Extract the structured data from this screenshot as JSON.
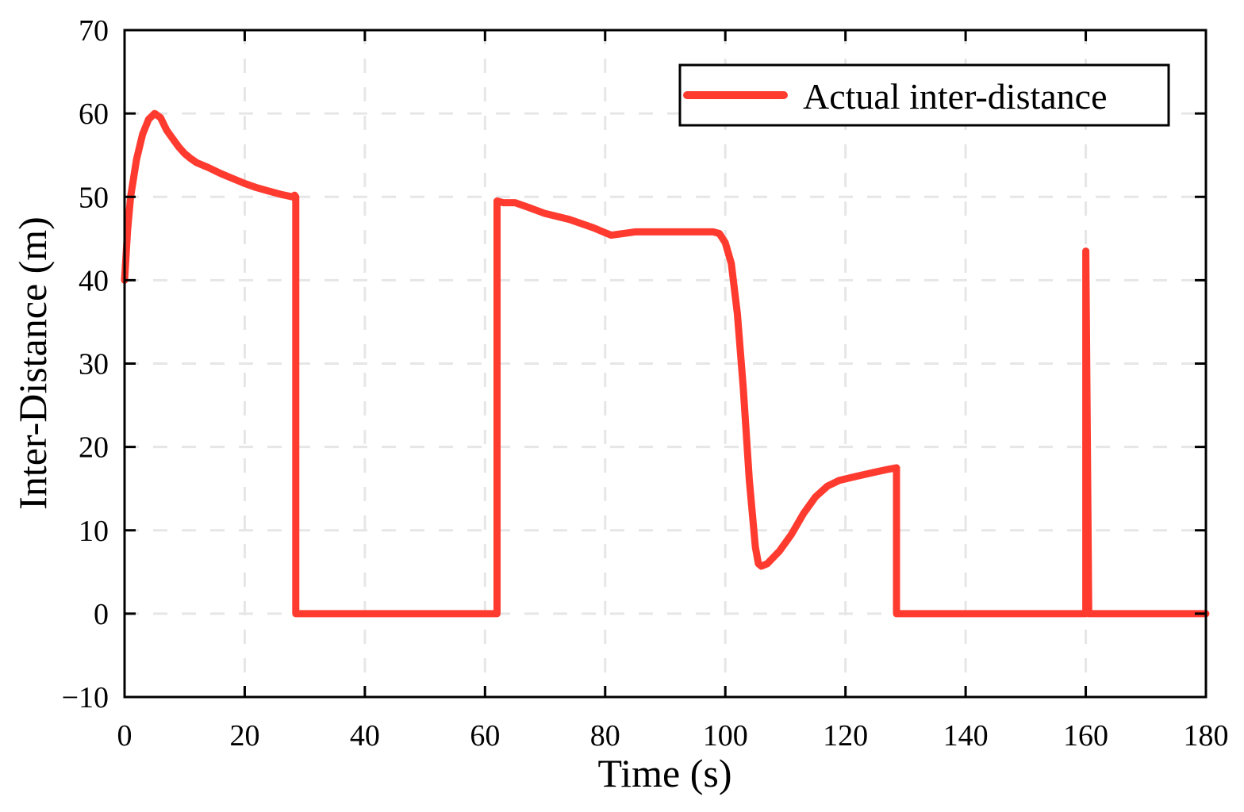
{
  "chart_data": {
    "type": "line",
    "xlabel": "Time (s)",
    "ylabel": "Inter-Distance (m)",
    "xlim": [
      0,
      180
    ],
    "ylim": [
      -10,
      70
    ],
    "x_ticks": [
      0,
      20,
      40,
      60,
      80,
      100,
      120,
      140,
      160,
      180
    ],
    "y_ticks": [
      -10,
      0,
      10,
      20,
      30,
      40,
      50,
      60,
      70
    ],
    "x_tick_labels": [
      "0",
      "20",
      "40",
      "60",
      "80",
      "100",
      "120",
      "140",
      "160",
      "180"
    ],
    "y_tick_labels": [
      "−10",
      "0",
      "10",
      "20",
      "30",
      "40",
      "50",
      "60",
      "70"
    ],
    "grid": true,
    "legend_position": "top-right",
    "series": [
      {
        "name": "Actual inter-distance",
        "color": "#ff3b30",
        "points": [
          [
            0,
            40
          ],
          [
            0.5,
            46
          ],
          [
            1,
            50
          ],
          [
            2,
            54.5
          ],
          [
            3,
            57.5
          ],
          [
            4,
            59.3
          ],
          [
            5,
            60
          ],
          [
            6,
            59.5
          ],
          [
            7,
            58
          ],
          [
            8,
            57
          ],
          [
            9,
            56
          ],
          [
            10,
            55.2
          ],
          [
            11,
            54.6
          ],
          [
            12,
            54.1
          ],
          [
            14,
            53.5
          ],
          [
            16,
            52.8
          ],
          [
            18,
            52.2
          ],
          [
            20,
            51.6
          ],
          [
            22,
            51.1
          ],
          [
            24,
            50.7
          ],
          [
            26,
            50.3
          ],
          [
            28,
            50
          ],
          [
            28.3,
            50.2
          ],
          [
            28.5,
            50
          ],
          [
            28.5,
            0
          ],
          [
            62,
            0
          ],
          [
            62,
            49.5
          ],
          [
            63,
            49.3
          ],
          [
            65,
            49.3
          ],
          [
            67,
            48.8
          ],
          [
            70,
            48
          ],
          [
            74,
            47.3
          ],
          [
            78,
            46.3
          ],
          [
            80,
            45.7
          ],
          [
            81,
            45.4
          ],
          [
            82,
            45.5
          ],
          [
            85,
            45.8
          ],
          [
            90,
            45.8
          ],
          [
            95,
            45.8
          ],
          [
            98,
            45.8
          ],
          [
            99,
            45.6
          ],
          [
            100,
            44.5
          ],
          [
            101,
            42
          ],
          [
            102,
            36
          ],
          [
            103,
            27
          ],
          [
            104,
            16
          ],
          [
            105,
            8
          ],
          [
            105.5,
            6
          ],
          [
            106,
            5.7
          ],
          [
            107,
            6
          ],
          [
            109,
            7.5
          ],
          [
            111,
            9.5
          ],
          [
            113,
            12
          ],
          [
            115,
            14
          ],
          [
            117,
            15.3
          ],
          [
            119,
            16
          ],
          [
            122,
            16.5
          ],
          [
            125,
            17
          ],
          [
            127,
            17.3
          ],
          [
            128.5,
            17.5
          ],
          [
            128.5,
            0
          ],
          [
            160,
            0
          ],
          [
            160,
            43.5
          ],
          [
            160.5,
            0
          ],
          [
            180,
            0
          ]
        ]
      }
    ]
  }
}
